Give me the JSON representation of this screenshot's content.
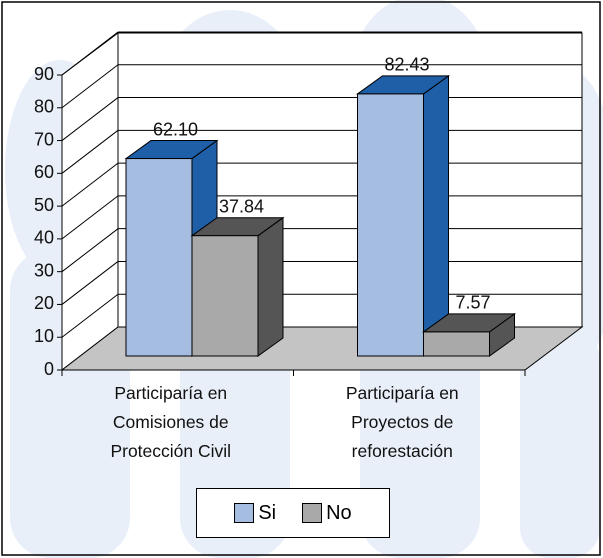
{
  "chart_data": {
    "type": "bar3d",
    "categories": [
      "Participaría en Comisiones de Protección Civil",
      "Participaría en Proyectos de reforestación"
    ],
    "series": [
      {
        "name": "Si",
        "color": "#a4bde0",
        "side_color": "#1f5fa8",
        "values": [
          62.1,
          82.43
        ],
        "value_labels": [
          "62.10",
          "82.43"
        ]
      },
      {
        "name": "No",
        "color": "#a9a9a9",
        "side_color": "#555555",
        "values": [
          37.84,
          7.57
        ],
        "value_labels": [
          "37.84",
          "7.57"
        ]
      }
    ],
    "ylim": [
      0,
      90
    ],
    "yticks": [
      0,
      10,
      20,
      30,
      40,
      50,
      60,
      70,
      80,
      90
    ],
    "grid": true,
    "legend": "bottom"
  }
}
